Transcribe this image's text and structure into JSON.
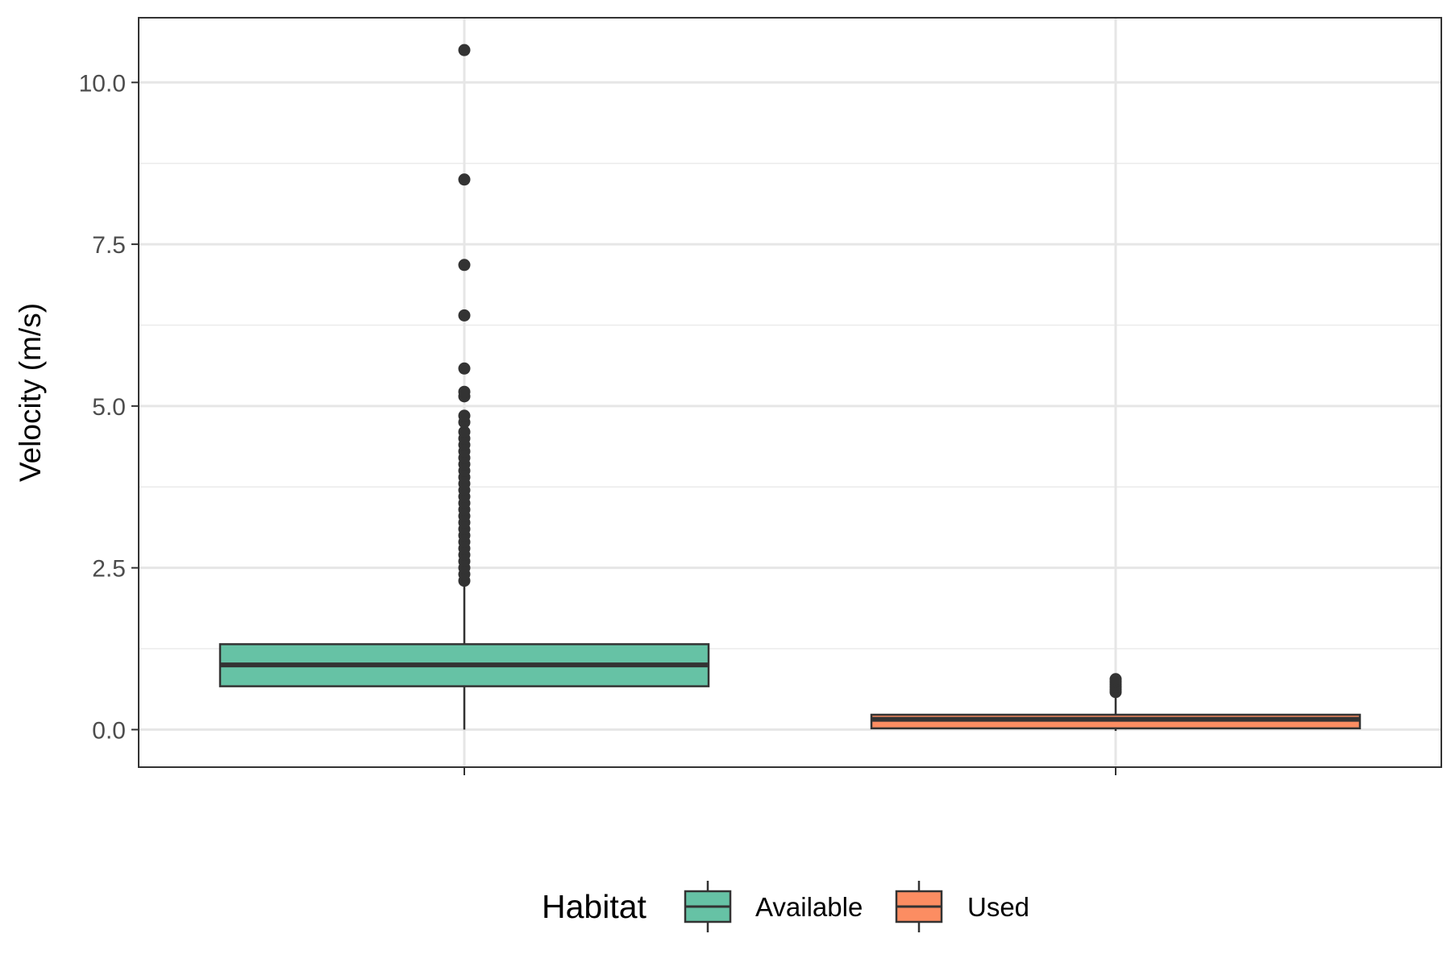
{
  "chart_data": {
    "type": "boxplot",
    "ylabel": "Velocity (m/s)",
    "xlabel": "",
    "ylim": [
      -0.58,
      11.0
    ],
    "yticks": [
      0.0,
      2.5,
      5.0,
      7.5,
      10.0
    ],
    "ytick_labels": [
      "0.0",
      "2.5",
      "5.0",
      "7.5",
      "10.0"
    ],
    "grid": true,
    "legend": {
      "title": "Habitat",
      "position": "bottom"
    },
    "series": [
      {
        "name": "Available",
        "color": "#66c2a5",
        "whisker_low": 0.0,
        "q1": 0.67,
        "median": 1.0,
        "q3": 1.32,
        "whisker_high": 2.25,
        "outliers": [
          2.3,
          2.4,
          2.5,
          2.6,
          2.7,
          2.8,
          2.9,
          3.0,
          3.1,
          3.2,
          3.3,
          3.4,
          3.5,
          3.6,
          3.7,
          3.8,
          3.9,
          4.0,
          4.1,
          4.2,
          4.3,
          4.4,
          4.5,
          4.6,
          4.75,
          4.85,
          5.15,
          5.22,
          5.58,
          6.4,
          7.18,
          8.5,
          10.5
        ]
      },
      {
        "name": "Used",
        "color": "#fc8d62",
        "whisker_low": -0.02,
        "q1": 0.02,
        "median": 0.16,
        "q3": 0.23,
        "whisker_high": 0.55,
        "outliers": [
          0.58,
          0.62,
          0.66,
          0.7,
          0.74,
          0.78
        ]
      }
    ]
  }
}
